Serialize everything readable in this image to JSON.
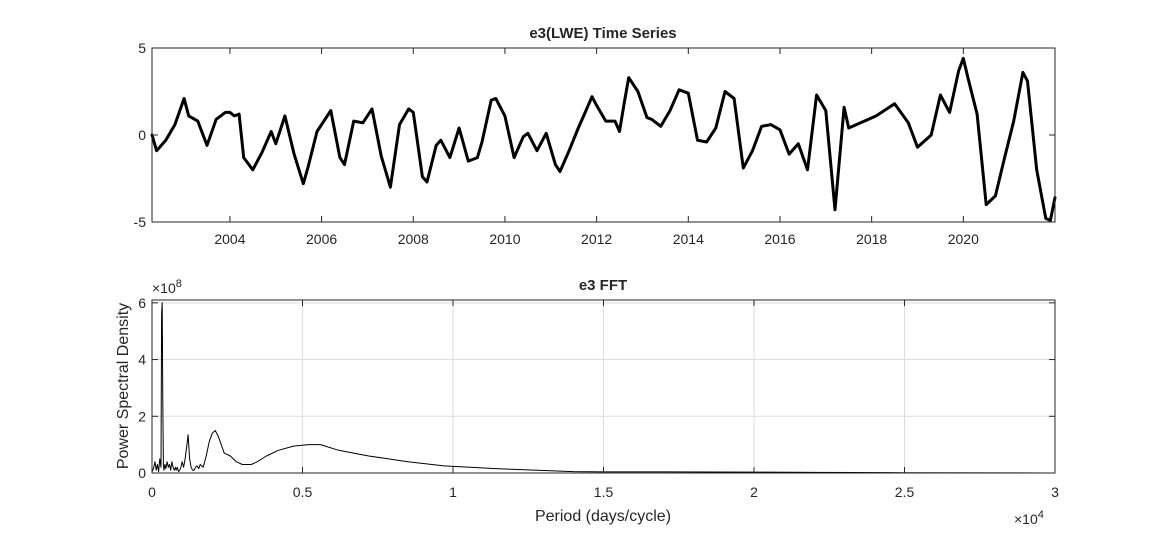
{
  "chart_data": [
    {
      "type": "line",
      "title": "e3(LWE) Time Series",
      "xlabel": "",
      "ylabel": "",
      "xlim": [
        2002.3,
        2022.0
      ],
      "ylim": [
        -5,
        5
      ],
      "x_tick_labels": [
        "2004",
        "2006",
        "2008",
        "2010",
        "2012",
        "2014",
        "2016",
        "2018",
        "2020"
      ],
      "y_tick_labels": [
        "-5",
        "0",
        "5"
      ],
      "grid": false,
      "line_color": "#000000",
      "series": [
        {
          "x": [
            2002.3,
            2002.4,
            2002.6,
            2002.8,
            2003.0,
            2003.1,
            2003.3,
            2003.5,
            2003.7,
            2003.9,
            2004.0,
            2004.1,
            2004.2,
            2004.3,
            2004.5,
            2004.7,
            2004.9,
            2005.0,
            2005.2,
            2005.4,
            2005.6,
            2005.7,
            2005.9,
            2006.1,
            2006.2,
            2006.4,
            2006.5,
            2006.7,
            2006.9,
            2007.1,
            2007.3,
            2007.5,
            2007.7,
            2007.9,
            2008.0,
            2008.2,
            2008.3,
            2008.5,
            2008.6,
            2008.8,
            2009.0,
            2009.2,
            2009.4,
            2009.5,
            2009.7,
            2009.8,
            2010.0,
            2010.2,
            2010.4,
            2010.5,
            2010.7,
            2010.9,
            2011.1,
            2011.2,
            2011.4,
            2011.6,
            2011.7,
            2011.9,
            2012.0,
            2012.2,
            2012.4,
            2012.5,
            2012.6,
            2012.7,
            2012.9,
            2013.1,
            2013.2,
            2013.4,
            2013.6,
            2013.8,
            2014.0,
            2014.2,
            2014.4,
            2014.6,
            2014.8,
            2015.0,
            2015.2,
            2015.4,
            2015.6,
            2015.8,
            2016.0,
            2016.2,
            2016.4,
            2016.6,
            2016.8,
            2017.0,
            2017.2,
            2017.4,
            2017.5,
            2018.1,
            2018.5,
            2018.8,
            2019.0,
            2019.3,
            2019.5,
            2019.7,
            2019.9,
            2020.0,
            2020.1,
            2020.3,
            2020.5,
            2020.7,
            2020.9,
            2021.1,
            2021.3,
            2021.4,
            2021.6,
            2021.8,
            2021.9,
            2022.0
          ],
          "values": [
            0.0,
            -0.9,
            -0.3,
            0.6,
            2.1,
            1.1,
            0.8,
            -0.6,
            0.9,
            1.3,
            1.3,
            1.1,
            1.2,
            -1.3,
            -2.0,
            -1.0,
            0.2,
            -0.5,
            1.1,
            -1.1,
            -2.8,
            -1.9,
            0.2,
            1.0,
            1.4,
            -1.3,
            -1.7,
            0.8,
            0.7,
            1.5,
            -1.2,
            -3.0,
            0.6,
            1.5,
            1.3,
            -2.4,
            -2.7,
            -0.6,
            -0.3,
            -1.3,
            0.4,
            -1.5,
            -1.3,
            -0.4,
            2.0,
            2.1,
            1.1,
            -1.3,
            -0.1,
            0.1,
            -0.9,
            0.1,
            -1.7,
            -2.1,
            -0.9,
            0.4,
            1.0,
            2.2,
            1.7,
            0.8,
            0.8,
            0.2,
            1.8,
            3.3,
            2.5,
            1.0,
            0.9,
            0.5,
            1.4,
            2.6,
            2.4,
            -0.3,
            -0.4,
            0.4,
            2.5,
            2.1,
            -1.9,
            -0.9,
            0.5,
            0.6,
            0.3,
            -1.1,
            -0.5,
            -2.0,
            2.3,
            1.4,
            -4.3,
            1.6,
            0.4,
            1.1,
            1.8,
            0.7,
            -0.7,
            0.0,
            2.3,
            1.3,
            3.7,
            4.4,
            3.3,
            1.2,
            -4.0,
            -3.5,
            -1.3,
            0.8,
            3.6,
            3.1,
            -2.0,
            -4.8,
            -4.9,
            -3.6
          ]
        }
      ]
    },
    {
      "type": "line",
      "title": "e3 FFT",
      "xlabel": "Period (days/cycle)",
      "ylabel": "Power Spectral Density",
      "x_exponent": "×10^4",
      "y_exponent": "×10^8",
      "xlim": [
        0,
        30000
      ],
      "ylim": [
        0,
        6.1
      ],
      "x_ticks": [
        0,
        5000,
        10000,
        15000,
        20000,
        25000,
        30000
      ],
      "x_tick_labels": [
        "0",
        "0.5",
        "1",
        "1.5",
        "2",
        "2.5",
        "3"
      ],
      "y_ticks": [
        0,
        2,
        4,
        6
      ],
      "y_tick_labels": [
        "0",
        "2",
        "4",
        "6"
      ],
      "grid": true,
      "line_color": "#000000",
      "series": [
        {
          "x": [
            5,
            60,
            100,
            140,
            180,
            220,
            260,
            300,
            320,
            340,
            360,
            380,
            400,
            430,
            460,
            500,
            540,
            580,
            620,
            660,
            700,
            740,
            780,
            800,
            840,
            880,
            920,
            960,
            1000,
            1050,
            1100,
            1150,
            1200,
            1250,
            1300,
            1350,
            1400,
            1450,
            1500,
            1550,
            1600,
            1700,
            1800,
            1900,
            2000,
            2100,
            2200,
            2300,
            2400,
            2600,
            2800,
            3000,
            3300,
            3500,
            3800,
            4200,
            4700,
            5200,
            5600,
            6200,
            7200,
            8500,
            9700,
            11500,
            14000,
            15000,
            17000,
            20000,
            22000,
            25000,
            30000
          ],
          "values": [
            0.05,
            0.2,
            0.4,
            0.1,
            0.3,
            0.05,
            0.5,
            0.2,
            5.6,
            6.0,
            2.5,
            0.3,
            0.1,
            0.3,
            0.15,
            0.4,
            0.2,
            0.3,
            0.1,
            0.4,
            0.2,
            0.1,
            0.2,
            0.1,
            0.2,
            0.05,
            0.1,
            0.2,
            0.4,
            0.2,
            0.5,
            0.9,
            1.35,
            0.5,
            0.2,
            0.1,
            0.1,
            0.2,
            0.25,
            0.15,
            0.3,
            0.2,
            0.6,
            1.1,
            1.4,
            1.5,
            1.3,
            1.0,
            0.7,
            0.6,
            0.4,
            0.3,
            0.3,
            0.4,
            0.6,
            0.8,
            0.95,
            1.0,
            1.0,
            0.8,
            0.6,
            0.4,
            0.25,
            0.15,
            0.05,
            0.04,
            0.04,
            0.03,
            0.02,
            0.01,
            0.0
          ]
        }
      ]
    }
  ]
}
